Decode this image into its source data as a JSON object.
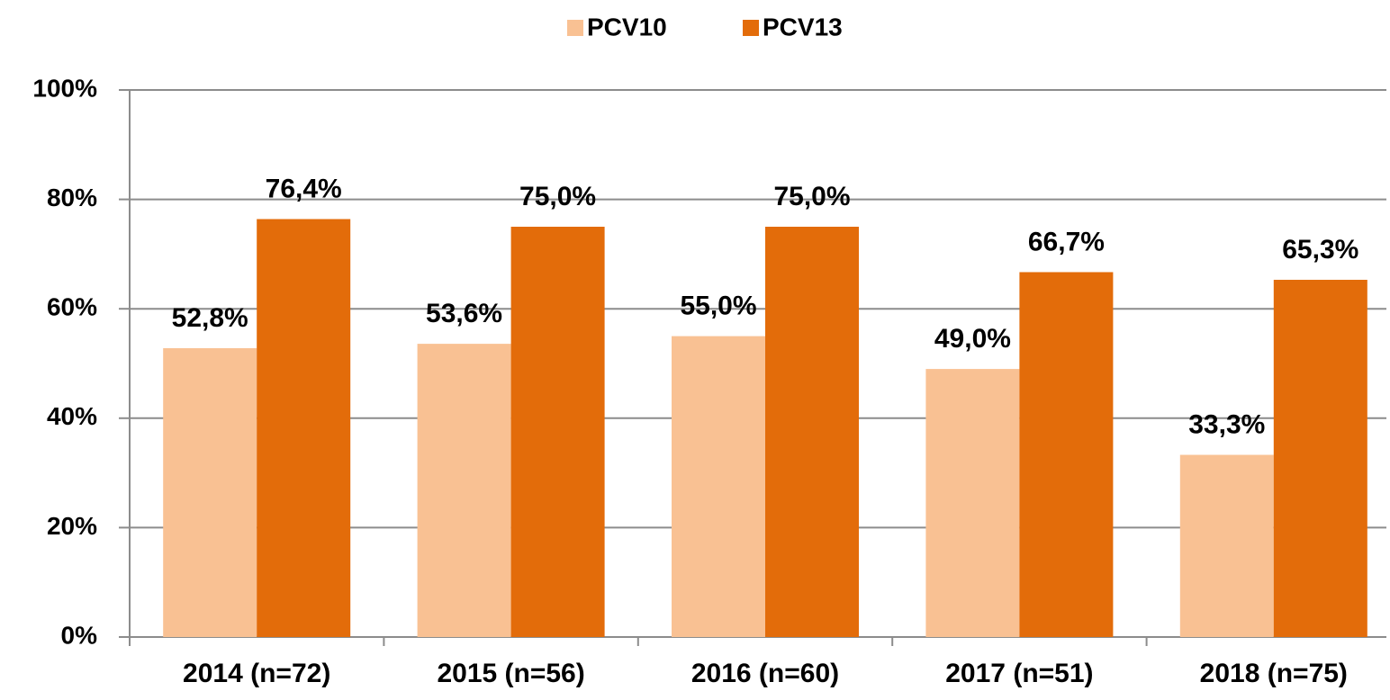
{
  "chart_data": {
    "type": "bar",
    "categories": [
      "2014 (n=72)",
      "2015 (n=56)",
      "2016 (n=60)",
      "2017 (n=51)",
      "2018 (n=75)"
    ],
    "series": [
      {
        "name": "PCV10",
        "color": "#f9c193",
        "values": [
          52.8,
          53.6,
          55.0,
          49.0,
          33.3
        ],
        "value_labels": [
          "52,8%",
          "53,6%",
          "55,0%",
          "49,0%",
          "33,3%"
        ]
      },
      {
        "name": "PCV13",
        "color": "#e36c0a",
        "values": [
          76.4,
          75.0,
          75.0,
          66.7,
          65.3
        ],
        "value_labels": [
          "76,4%",
          "75,0%",
          "75,0%",
          "66,7%",
          "65,3%"
        ]
      }
    ],
    "ylim": [
      0,
      100
    ],
    "yticks": [
      {
        "value": 0,
        "label": "0%"
      },
      {
        "value": 20,
        "label": "20%"
      },
      {
        "value": 40,
        "label": "40%"
      },
      {
        "value": 60,
        "label": "60%"
      },
      {
        "value": 80,
        "label": "80%"
      },
      {
        "value": 100,
        "label": "100%"
      }
    ],
    "grid": true,
    "legend": "top"
  }
}
